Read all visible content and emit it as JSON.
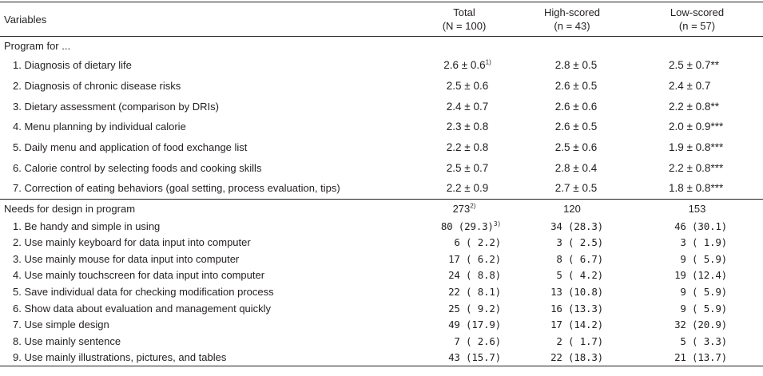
{
  "header": {
    "variables": "Variables",
    "total": "Total",
    "total_n": "(N = 100)",
    "high": "High-scored",
    "high_n": "(n = 43)",
    "low": "Low-scored",
    "low_n": "(n = 57)"
  },
  "section1": {
    "title": "Program for ...",
    "rows": [
      {
        "label": "1. Diagnosis of dietary life",
        "total": "2.6 ± 0.6",
        "total_sup": "1)",
        "high": "2.8 ± 0.5",
        "low": "2.5 ± 0.7**"
      },
      {
        "label": "2. Diagnosis of chronic disease risks",
        "total": "2.5 ± 0.6",
        "total_sup": "",
        "high": "2.6 ± 0.5",
        "low": "2.4 ± 0.7"
      },
      {
        "label": "3. Dietary assessment (comparison by DRIs)",
        "total": "2.4 ± 0.7",
        "total_sup": "",
        "high": "2.6 ± 0.6",
        "low": "2.2 ± 0.8**"
      },
      {
        "label": "4. Menu planning by individual calorie",
        "total": "2.3 ± 0.8",
        "total_sup": "",
        "high": "2.6 ± 0.5",
        "low": "2.0 ± 0.9***"
      },
      {
        "label": "5. Daily menu and application of food exchange list",
        "total": "2.2 ± 0.8",
        "total_sup": "",
        "high": "2.5 ± 0.6",
        "low": "1.9 ± 0.8***"
      },
      {
        "label": "6. Calorie control by selecting foods and cooking skills",
        "total": "2.5 ± 0.7",
        "total_sup": "",
        "high": "2.8 ± 0.4",
        "low": "2.2 ± 0.8***"
      },
      {
        "label": "7. Correction of eating behaviors (goal setting, process evaluation, tips)",
        "total": "2.2 ± 0.9",
        "total_sup": "",
        "high": "2.7 ± 0.5",
        "low": "1.8 ± 0.8***"
      }
    ]
  },
  "section2": {
    "title": "Needs for design in program",
    "total": "273",
    "total_sup": "2)",
    "high": "120",
    "low": "153",
    "rows": [
      {
        "label": "1. Be handy and simple in using",
        "total": "80 (29.3)",
        "total_sup": "3)",
        "high": "34 (28.3)",
        "low": "46 (30.1)"
      },
      {
        "label": "2. Use mainly keyboard for data input into computer",
        "total": "6 ( 2.2)",
        "total_sup": "",
        "high": "3 ( 2.5)",
        "low": "3 ( 1.9)"
      },
      {
        "label": "3. Use mainly mouse for data input into computer",
        "total": "17 ( 6.2)",
        "total_sup": "",
        "high": "8 ( 6.7)",
        "low": "9 ( 5.9)"
      },
      {
        "label": "4. Use mainly touchscreen for data input into computer",
        "total": "24 ( 8.8)",
        "total_sup": "",
        "high": "5 ( 4.2)",
        "low": "19 (12.4)"
      },
      {
        "label": "5. Save individual data for checking modification process",
        "total": "22 ( 8.1)",
        "total_sup": "",
        "high": "13 (10.8)",
        "low": "9 ( 5.9)"
      },
      {
        "label": "6. Show data about evaluation and management quickly",
        "total": "25 ( 9.2)",
        "total_sup": "",
        "high": "16 (13.3)",
        "low": "9 ( 5.9)"
      },
      {
        "label": "7. Use simple design",
        "total": "49 (17.9)",
        "total_sup": "",
        "high": "17 (14.2)",
        "low": "32 (20.9)"
      },
      {
        "label": "8. Use mainly sentence",
        "total": "7 ( 2.6)",
        "total_sup": "",
        "high": "2 ( 1.7)",
        "low": "5 ( 3.3)"
      },
      {
        "label": "9. Use mainly illustrations, pictures, and tables",
        "total": "43 (15.7)",
        "total_sup": "",
        "high": "22 (18.3)",
        "low": "21 (13.7)"
      }
    ]
  }
}
